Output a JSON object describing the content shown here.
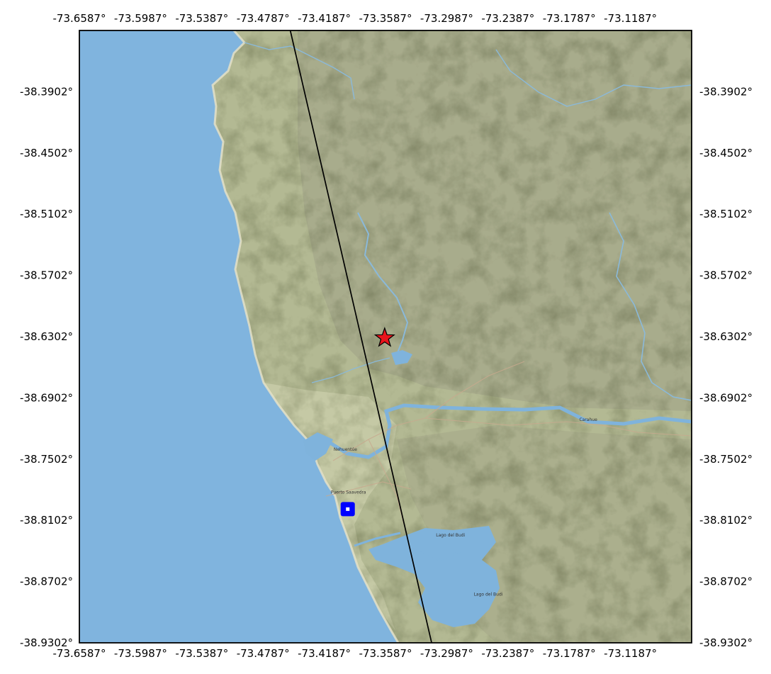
{
  "map": {
    "extent": {
      "lon_min": -73.6587,
      "lon_max": -73.0587,
      "lat_min": -38.9302,
      "lat_max": -38.3302
    },
    "x_ticks": [
      "-73.6587°",
      "-73.5987°",
      "-73.5387°",
      "-73.4787°",
      "-73.4187°",
      "-73.3587°",
      "-73.2987°",
      "-73.2387°",
      "-73.1787°",
      "-73.1187°"
    ],
    "y_ticks": [
      "-38.3902°",
      "-38.4502°",
      "-38.5102°",
      "-38.5702°",
      "-38.6302°",
      "-38.6902°",
      "-38.7502°",
      "-38.8102°",
      "-38.8702°",
      "-38.9302°"
    ],
    "place_names": [
      {
        "name": "Carahue",
        "lon": -73.16,
        "lat": -38.713
      },
      {
        "name": "Nehuentúe",
        "lon": -73.398,
        "lat": -38.742
      },
      {
        "name": "Puerto Saavedra",
        "lon": -73.395,
        "lat": -38.784
      },
      {
        "name": "Lago del Budi",
        "lon": -73.295,
        "lat": -38.826
      },
      {
        "name": "Lago del Budi",
        "lon": -73.258,
        "lat": -38.884
      }
    ],
    "profile_line": {
      "start": {
        "lon": -73.452,
        "lat": -38.3302
      },
      "end": {
        "lon": -73.3135,
        "lat": -38.9302
      }
    },
    "markers": {
      "epicenter": {
        "lon": -73.3595,
        "lat": -38.6315,
        "color": "#e8141b",
        "shape": "star"
      },
      "station": {
        "lon": -73.3957,
        "lat": -38.7992,
        "color": "#0000ff",
        "shape": "square"
      }
    },
    "colors": {
      "ocean": "#80b4de",
      "land": "#b3b993",
      "hills": "#9ca083",
      "lowland": "#c5c8a6",
      "lake": "#7fb3dc"
    }
  }
}
